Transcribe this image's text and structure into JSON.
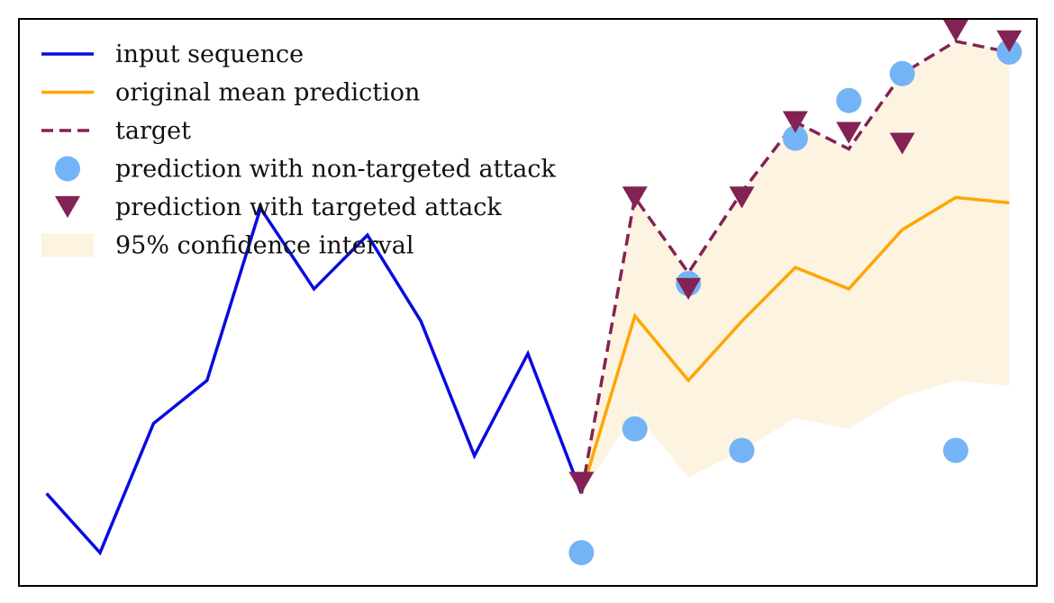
{
  "chart_data": {
    "type": "line",
    "title": "",
    "xlabel": "",
    "ylabel": "",
    "grid": false,
    "legend_position": "top-left",
    "xlim": [
      -0.5,
      18.5
    ],
    "ylim": [
      0,
      10.5
    ],
    "x": [
      0,
      1,
      2,
      3,
      4,
      5,
      6,
      7,
      8,
      9,
      10,
      11,
      12,
      13,
      14,
      15,
      16,
      17,
      18
    ],
    "series": [
      {
        "name": "input sequence",
        "style": "solid-line",
        "color": "#0a0ae0",
        "x": [
          0,
          1,
          2,
          3,
          4,
          5,
          6,
          7,
          8,
          9,
          10
        ],
        "values": [
          1.7,
          0.6,
          3.0,
          3.8,
          7.0,
          5.5,
          6.5,
          4.9,
          2.4,
          4.3,
          1.7
        ]
      },
      {
        "name": "original mean prediction",
        "style": "solid-line",
        "color": "#ffa500",
        "x": [
          10,
          11,
          12,
          13,
          14,
          15,
          16,
          17,
          18
        ],
        "values": [
          1.7,
          5.0,
          3.8,
          4.9,
          5.9,
          5.5,
          6.6,
          7.2,
          7.1
        ]
      },
      {
        "name": "target",
        "style": "dashed-line",
        "color": "#832255",
        "x": [
          10,
          11,
          12,
          13,
          14,
          15,
          16,
          17,
          18
        ],
        "values": [
          1.7,
          7.2,
          5.8,
          7.3,
          8.6,
          8.1,
          9.5,
          10.1,
          9.9
        ]
      },
      {
        "name": "prediction with non-targeted attack",
        "style": "circle-marker",
        "color": "#74b4f6",
        "x": [
          10,
          11,
          12,
          13,
          14,
          15,
          16,
          17,
          18
        ],
        "values": [
          0.6,
          2.9,
          5.6,
          2.5,
          8.3,
          9.0,
          9.5,
          2.5,
          9.9
        ]
      },
      {
        "name": "prediction with targeted attack",
        "style": "triangle-down-marker",
        "color": "#832255",
        "x": [
          10,
          11,
          12,
          13,
          14,
          15,
          16,
          17,
          18
        ],
        "values": [
          1.9,
          7.2,
          5.5,
          7.2,
          8.6,
          8.4,
          8.2,
          10.3,
          10.1
        ]
      }
    ],
    "confidence_interval": {
      "name": "95% confidence interval",
      "color": "#fdf3e1",
      "x": [
        10,
        11,
        12,
        13,
        14,
        15,
        16,
        17,
        18
      ],
      "lower": [
        1.7,
        3.2,
        2.0,
        2.5,
        3.1,
        2.9,
        3.5,
        3.8,
        3.7
      ],
      "upper": [
        1.7,
        7.2,
        5.8,
        7.3,
        8.6,
        8.1,
        9.5,
        10.1,
        9.9
      ]
    },
    "legend_order": [
      "input sequence",
      "original mean prediction",
      "target",
      "prediction with non-targeted attack",
      "prediction with targeted attack",
      "95% confidence interval"
    ]
  }
}
